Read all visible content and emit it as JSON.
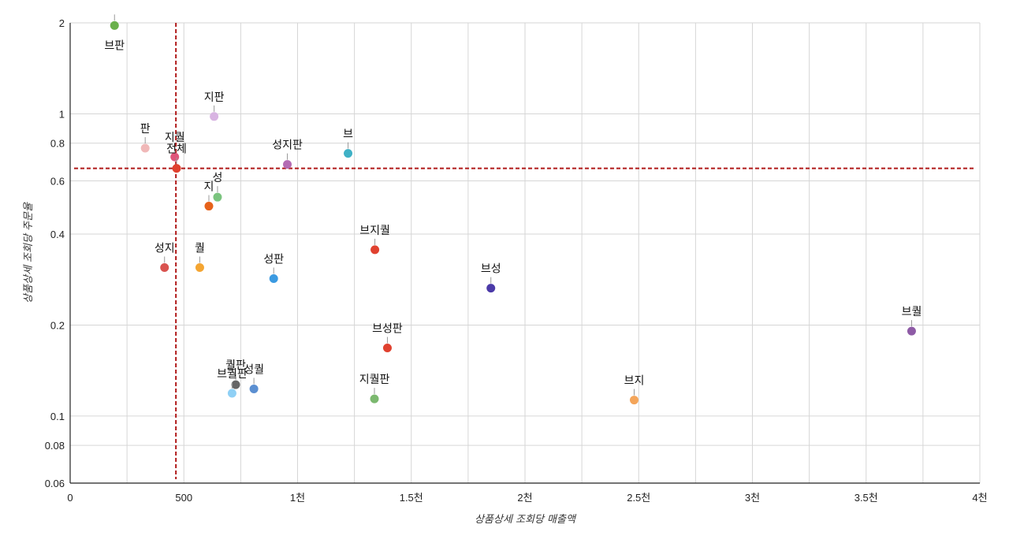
{
  "chart_data": {
    "type": "scatter",
    "xlabel": "상품상세 조회당 매출액",
    "ylabel": "상품상세 조회당 주문율",
    "x_scale": "linear",
    "y_scale": "log",
    "xlim": [
      0,
      4000
    ],
    "ylim": [
      0.06,
      2
    ],
    "grid": true,
    "x_ticks": [
      {
        "value": 0,
        "label": "0"
      },
      {
        "value": 500,
        "label": "500"
      },
      {
        "value": 1000,
        "label": "1천"
      },
      {
        "value": 1500,
        "label": "1.5천"
      },
      {
        "value": 2000,
        "label": "2천"
      },
      {
        "value": 2500,
        "label": "2.5천"
      },
      {
        "value": 3000,
        "label": "3천"
      },
      {
        "value": 3500,
        "label": "3.5천"
      },
      {
        "value": 4000,
        "label": "4천"
      }
    ],
    "x_minor_grid": [
      250,
      750,
      1250,
      1750,
      2250,
      2750,
      3250,
      3750
    ],
    "y_ticks": [
      {
        "value": 0.06,
        "label": "0.06"
      },
      {
        "value": 0.08,
        "label": "0.08"
      },
      {
        "value": 0.1,
        "label": "0.1"
      },
      {
        "value": 0.2,
        "label": "0.2"
      },
      {
        "value": 0.4,
        "label": "0.4"
      },
      {
        "value": 0.6,
        "label": "0.6"
      },
      {
        "value": 0.8,
        "label": "0.8"
      },
      {
        "value": 1,
        "label": "1"
      },
      {
        "value": 2,
        "label": "2"
      }
    ],
    "reference_lines": {
      "x": 465,
      "y": 0.66
    },
    "points": [
      {
        "label": "브판",
        "x": 195,
        "y": 1.96,
        "color": "#6ab04c"
      },
      {
        "label": "판",
        "x": 330,
        "y": 0.77,
        "color": "#f0b8b8"
      },
      {
        "label": "지퀄",
        "x": 460,
        "y": 0.72,
        "color": "#e0557a"
      },
      {
        "label": "전체",
        "x": 468,
        "y": 0.66,
        "color": "#e0412f"
      },
      {
        "label": "지판",
        "x": 633,
        "y": 0.98,
        "color": "#d8b4e2"
      },
      {
        "label": "성",
        "x": 648,
        "y": 0.53,
        "color": "#7bc47f"
      },
      {
        "label": "지",
        "x": 610,
        "y": 0.495,
        "color": "#e6621a"
      },
      {
        "label": "성지판",
        "x": 955,
        "y": 0.68,
        "color": "#b36bb3"
      },
      {
        "label": "브",
        "x": 1222,
        "y": 0.74,
        "color": "#3fb1c6"
      },
      {
        "label": "성지",
        "x": 415,
        "y": 0.31,
        "color": "#d9534f"
      },
      {
        "label": "퀄",
        "x": 570,
        "y": 0.31,
        "color": "#f4a532"
      },
      {
        "label": "성판",
        "x": 895,
        "y": 0.285,
        "color": "#3b9ae1"
      },
      {
        "label": "브지퀄",
        "x": 1340,
        "y": 0.355,
        "color": "#e0412f"
      },
      {
        "label": "브성",
        "x": 1850,
        "y": 0.265,
        "color": "#4b3aa8"
      },
      {
        "label": "브성판",
        "x": 1395,
        "y": 0.168,
        "color": "#e0412f"
      },
      {
        "label": "퀄판",
        "x": 728,
        "y": 0.127,
        "color": "#666666"
      },
      {
        "label": "브퀄판",
        "x": 712,
        "y": 0.119,
        "color": "#8fd0f5"
      },
      {
        "label": "성퀄",
        "x": 808,
        "y": 0.123,
        "color": "#5b8fd1"
      },
      {
        "label": "지퀄판",
        "x": 1338,
        "y": 0.114,
        "color": "#7bb86f"
      },
      {
        "label": "브지",
        "x": 2480,
        "y": 0.113,
        "color": "#f4a55a"
      },
      {
        "label": "브퀄",
        "x": 3700,
        "y": 0.191,
        "color": "#8e5ba6"
      }
    ]
  }
}
